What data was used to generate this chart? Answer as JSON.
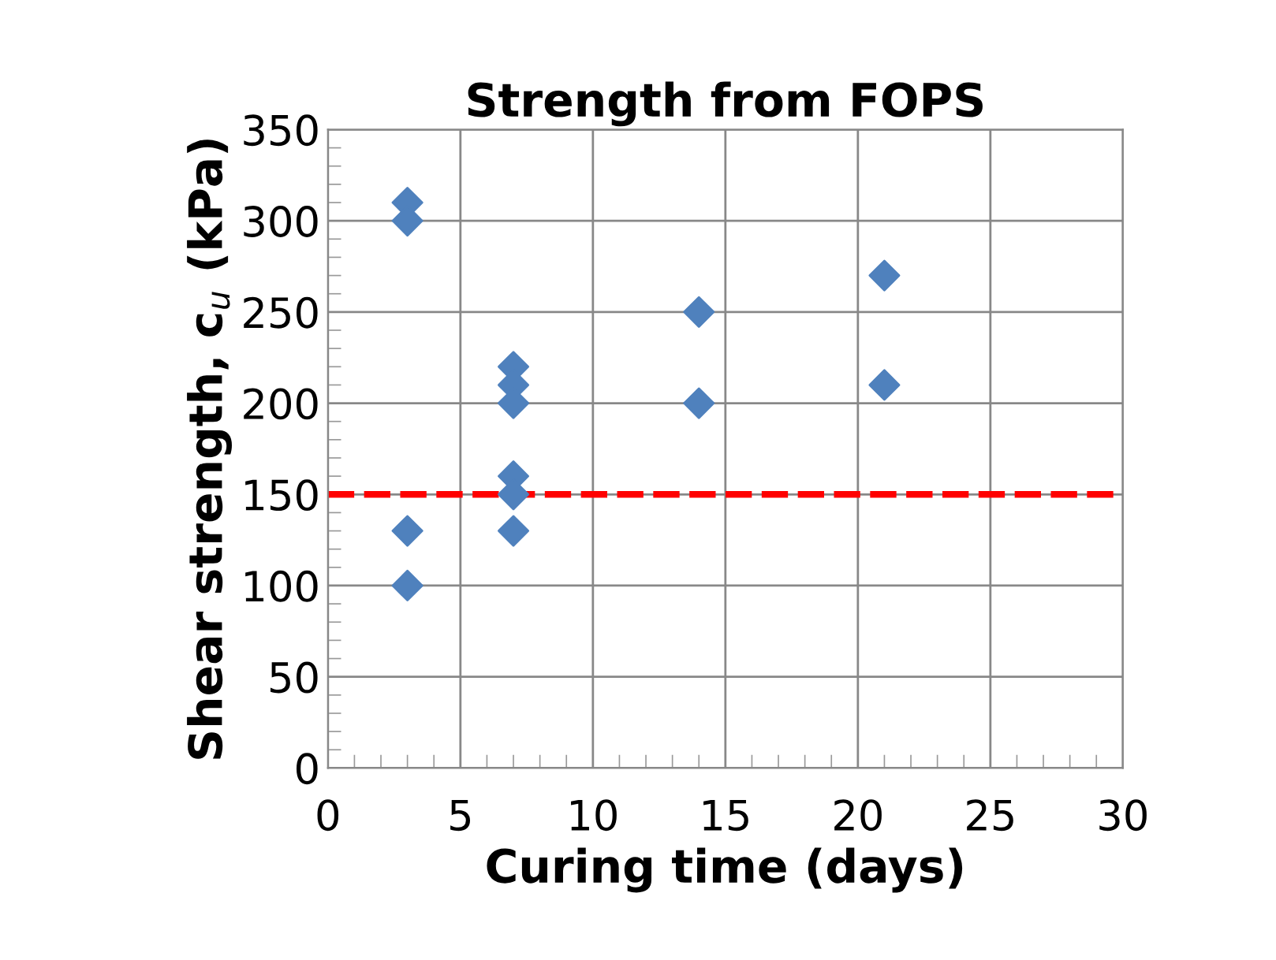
{
  "chart_data": {
    "type": "scatter",
    "title": "Strength from FOPS",
    "xlabel": "Curing time (days)",
    "ylabel": "Shear strength, c$_{u}$ (kPa)",
    "x": [
      3,
      3,
      3,
      3,
      7,
      7,
      7,
      7,
      7,
      7,
      14,
      14,
      21,
      21
    ],
    "values": [
      310,
      300,
      130,
      100,
      220,
      210,
      200,
      160,
      150,
      130,
      250,
      200,
      270,
      210
    ],
    "color": "#4f81bd",
    "marker": "diamond",
    "xlim": [
      0,
      30
    ],
    "xticks": [
      0,
      5,
      10,
      15,
      20,
      25,
      30
    ],
    "ylim": [
      0,
      350
    ],
    "yticks": [
      0,
      50,
      100,
      150,
      200,
      250,
      300,
      350
    ],
    "grid": true,
    "ref_lines": [
      {
        "axis": "y",
        "value": 150,
        "color": "#ff0000",
        "line_style": "dashed"
      }
    ]
  }
}
